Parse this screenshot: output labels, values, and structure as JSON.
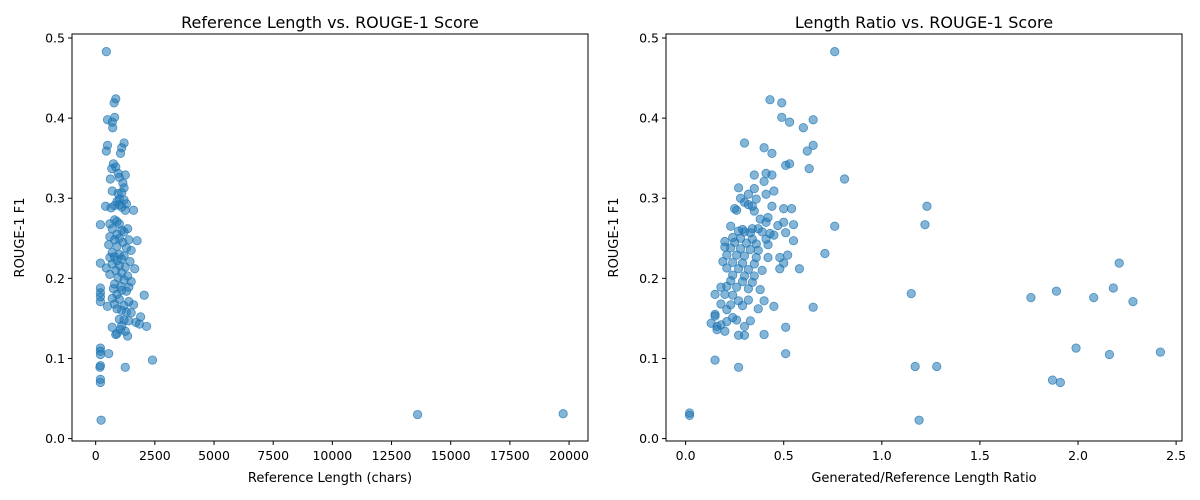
{
  "chart_data": [
    {
      "type": "scatter",
      "title": "Reference Length vs. ROUGE-1 Score",
      "xlabel": "Reference Length (chars)",
      "ylabel": "ROUGE-1 F1",
      "xlim": [
        -1000,
        20800
      ],
      "ylim": [
        -0.003,
        0.505
      ],
      "xticks": [
        0,
        2500,
        5000,
        7500,
        10000,
        12500,
        15000,
        17500,
        20000
      ],
      "yticks": [
        0.0,
        0.1,
        0.2,
        0.3,
        0.4,
        0.5
      ],
      "xtick_labels": [
        "0",
        "2500",
        "5000",
        "7500",
        "10000",
        "12500",
        "15000",
        "17500",
        "20000"
      ],
      "ytick_labels": [
        "0.0",
        "0.1",
        "0.2",
        "0.3",
        "0.4",
        "0.5"
      ],
      "grid": false,
      "marker_color": "#1f77b4",
      "marker_alpha": 0.55,
      "points": [
        [
          450,
          0.483
        ],
        [
          850,
          0.424
        ],
        [
          780,
          0.419
        ],
        [
          800,
          0.401
        ],
        [
          500,
          0.398
        ],
        [
          700,
          0.395
        ],
        [
          720,
          0.388
        ],
        [
          1200,
          0.369
        ],
        [
          500,
          0.366
        ],
        [
          1100,
          0.363
        ],
        [
          450,
          0.359
        ],
        [
          1050,
          0.356
        ],
        [
          750,
          0.343
        ],
        [
          680,
          0.337
        ],
        [
          850,
          0.339
        ],
        [
          950,
          0.331
        ],
        [
          1250,
          0.329
        ],
        [
          620,
          0.324
        ],
        [
          1000,
          0.326
        ],
        [
          1150,
          0.319
        ],
        [
          1200,
          0.313
        ],
        [
          700,
          0.309
        ],
        [
          1100,
          0.307
        ],
        [
          950,
          0.306
        ],
        [
          1000,
          0.299
        ],
        [
          900,
          0.296
        ],
        [
          1200,
          0.298
        ],
        [
          1300,
          0.293
        ],
        [
          800,
          0.291
        ],
        [
          420,
          0.29
        ],
        [
          1000,
          0.292
        ],
        [
          1100,
          0.289
        ],
        [
          650,
          0.288
        ],
        [
          1600,
          0.285
        ],
        [
          1250,
          0.285
        ],
        [
          200,
          0.267
        ],
        [
          600,
          0.268
        ],
        [
          800,
          0.273
        ],
        [
          900,
          0.271
        ],
        [
          1000,
          0.268
        ],
        [
          700,
          0.262
        ],
        [
          1100,
          0.26
        ],
        [
          1350,
          0.262
        ],
        [
          1200,
          0.258
        ],
        [
          900,
          0.255
        ],
        [
          600,
          0.252
        ],
        [
          800,
          0.248
        ],
        [
          1000,
          0.25
        ],
        [
          1400,
          0.248
        ],
        [
          1750,
          0.247
        ],
        [
          1150,
          0.245
        ],
        [
          550,
          0.242
        ],
        [
          900,
          0.24
        ],
        [
          1300,
          0.238
        ],
        [
          1500,
          0.235
        ],
        [
          700,
          0.232
        ],
        [
          1000,
          0.23
        ],
        [
          1200,
          0.228
        ],
        [
          800,
          0.227
        ],
        [
          600,
          0.226
        ],
        [
          1100,
          0.224
        ],
        [
          900,
          0.222
        ],
        [
          1450,
          0.221
        ],
        [
          200,
          0.219
        ],
        [
          700,
          0.218
        ],
        [
          1000,
          0.216
        ],
        [
          1250,
          0.214
        ],
        [
          450,
          0.213
        ],
        [
          1650,
          0.212
        ],
        [
          850,
          0.21
        ],
        [
          1100,
          0.207
        ],
        [
          600,
          0.205
        ],
        [
          1350,
          0.203
        ],
        [
          950,
          0.201
        ],
        [
          1200,
          0.198
        ],
        [
          1500,
          0.196
        ],
        [
          800,
          0.193
        ],
        [
          1050,
          0.19
        ],
        [
          1400,
          0.189
        ],
        [
          750,
          0.187
        ],
        [
          200,
          0.188
        ],
        [
          1100,
          0.185
        ],
        [
          1300,
          0.184
        ],
        [
          200,
          0.182
        ],
        [
          900,
          0.18
        ],
        [
          2050,
          0.179
        ],
        [
          200,
          0.177
        ],
        [
          700,
          0.175
        ],
        [
          1000,
          0.174
        ],
        [
          200,
          0.171
        ],
        [
          1400,
          0.171
        ],
        [
          800,
          0.168
        ],
        [
          1200,
          0.166
        ],
        [
          1600,
          0.167
        ],
        [
          500,
          0.165
        ],
        [
          900,
          0.162
        ],
        [
          1100,
          0.16
        ],
        [
          1300,
          0.158
        ],
        [
          1500,
          0.157
        ],
        [
          1900,
          0.152
        ],
        [
          1000,
          0.149
        ],
        [
          1200,
          0.148
        ],
        [
          1400,
          0.147
        ],
        [
          1700,
          0.145
        ],
        [
          1850,
          0.143
        ],
        [
          1100,
          0.141
        ],
        [
          700,
          0.139
        ],
        [
          2150,
          0.14
        ],
        [
          1050,
          0.136
        ],
        [
          1250,
          0.134
        ],
        [
          900,
          0.131
        ],
        [
          1350,
          0.128
        ],
        [
          850,
          0.13
        ],
        [
          200,
          0.113
        ],
        [
          200,
          0.109
        ],
        [
          550,
          0.106
        ],
        [
          200,
          0.105
        ],
        [
          2400,
          0.098
        ],
        [
          200,
          0.091
        ],
        [
          180,
          0.089
        ],
        [
          1250,
          0.089
        ],
        [
          200,
          0.074
        ],
        [
          200,
          0.07
        ],
        [
          230,
          0.023
        ],
        [
          13600,
          0.03
        ],
        [
          19750,
          0.031
        ]
      ]
    },
    {
      "type": "scatter",
      "title": "Length Ratio vs. ROUGE-1 Score",
      "xlabel": "Generated/Reference Length Ratio",
      "ylabel": "ROUGE-1 F1",
      "xlim": [
        -0.1,
        2.53
      ],
      "ylim": [
        -0.003,
        0.505
      ],
      "xticks": [
        0.0,
        0.5,
        1.0,
        1.5,
        2.0,
        2.5
      ],
      "yticks": [
        0.0,
        0.1,
        0.2,
        0.3,
        0.4,
        0.5
      ],
      "xtick_labels": [
        "0.0",
        "0.5",
        "1.0",
        "1.5",
        "2.0",
        "2.5"
      ],
      "ytick_labels": [
        "0.0",
        "0.1",
        "0.2",
        "0.3",
        "0.4",
        "0.5"
      ],
      "grid": false,
      "marker_color": "#1f77b4",
      "marker_alpha": 0.55,
      "points": [
        [
          0.76,
          0.483
        ],
        [
          0.43,
          0.423
        ],
        [
          0.49,
          0.419
        ],
        [
          0.49,
          0.401
        ],
        [
          0.53,
          0.395
        ],
        [
          0.65,
          0.398
        ],
        [
          0.6,
          0.388
        ],
        [
          0.3,
          0.369
        ],
        [
          0.4,
          0.363
        ],
        [
          0.65,
          0.366
        ],
        [
          0.44,
          0.356
        ],
        [
          0.62,
          0.359
        ],
        [
          0.53,
          0.343
        ],
        [
          0.51,
          0.341
        ],
        [
          0.63,
          0.337
        ],
        [
          0.35,
          0.329
        ],
        [
          0.41,
          0.331
        ],
        [
          0.44,
          0.329
        ],
        [
          0.81,
          0.324
        ],
        [
          0.4,
          0.321
        ],
        [
          0.27,
          0.313
        ],
        [
          0.35,
          0.312
        ],
        [
          0.45,
          0.309
        ],
        [
          0.32,
          0.305
        ],
        [
          0.41,
          0.305
        ],
        [
          0.28,
          0.3
        ],
        [
          0.36,
          0.299
        ],
        [
          0.3,
          0.295
        ],
        [
          0.32,
          0.292
        ],
        [
          0.34,
          0.29
        ],
        [
          0.44,
          0.29
        ],
        [
          1.23,
          0.29
        ],
        [
          0.25,
          0.287
        ],
        [
          0.26,
          0.285
        ],
        [
          0.35,
          0.284
        ],
        [
          0.5,
          0.287
        ],
        [
          0.54,
          0.287
        ],
        [
          0.42,
          0.276
        ],
        [
          0.38,
          0.274
        ],
        [
          0.41,
          0.27
        ],
        [
          0.5,
          0.27
        ],
        [
          0.23,
          0.265
        ],
        [
          0.29,
          0.261
        ],
        [
          0.34,
          0.262
        ],
        [
          0.37,
          0.262
        ],
        [
          0.47,
          0.266
        ],
        [
          0.55,
          0.267
        ],
        [
          0.76,
          0.265
        ],
        [
          1.22,
          0.267
        ],
        [
          0.27,
          0.259
        ],
        [
          0.3,
          0.258
        ],
        [
          0.33,
          0.257
        ],
        [
          0.39,
          0.258
        ],
        [
          0.43,
          0.256
        ],
        [
          0.51,
          0.257
        ],
        [
          0.24,
          0.251
        ],
        [
          0.28,
          0.25
        ],
        [
          0.34,
          0.249
        ],
        [
          0.41,
          0.249
        ],
        [
          0.45,
          0.254
        ],
        [
          0.2,
          0.246
        ],
        [
          0.25,
          0.245
        ],
        [
          0.31,
          0.244
        ],
        [
          0.36,
          0.243
        ],
        [
          0.42,
          0.242
        ],
        [
          0.55,
          0.247
        ],
        [
          0.2,
          0.239
        ],
        [
          0.23,
          0.238
        ],
        [
          0.28,
          0.237
        ],
        [
          0.33,
          0.236
        ],
        [
          0.37,
          0.235
        ],
        [
          0.21,
          0.229
        ],
        [
          0.26,
          0.229
        ],
        [
          0.3,
          0.228
        ],
        [
          0.36,
          0.226
        ],
        [
          0.42,
          0.226
        ],
        [
          0.48,
          0.226
        ],
        [
          0.52,
          0.229
        ],
        [
          0.71,
          0.231
        ],
        [
          0.19,
          0.221
        ],
        [
          0.24,
          0.22
        ],
        [
          0.29,
          0.219
        ],
        [
          0.35,
          0.218
        ],
        [
          0.5,
          0.219
        ],
        [
          2.21,
          0.219
        ],
        [
          0.21,
          0.213
        ],
        [
          0.27,
          0.212
        ],
        [
          0.32,
          0.211
        ],
        [
          0.39,
          0.21
        ],
        [
          0.48,
          0.212
        ],
        [
          0.58,
          0.212
        ],
        [
          0.24,
          0.204
        ],
        [
          0.3,
          0.203
        ],
        [
          0.35,
          0.203
        ],
        [
          0.23,
          0.197
        ],
        [
          0.29,
          0.196
        ],
        [
          0.34,
          0.195
        ],
        [
          0.21,
          0.19
        ],
        [
          0.26,
          0.189
        ],
        [
          0.32,
          0.187
        ],
        [
          0.18,
          0.189
        ],
        [
          0.38,
          0.186
        ],
        [
          2.18,
          0.188
        ],
        [
          1.89,
          0.184
        ],
        [
          0.15,
          0.18
        ],
        [
          0.2,
          0.18
        ],
        [
          0.24,
          0.179
        ],
        [
          1.15,
          0.181
        ],
        [
          0.27,
          0.172
        ],
        [
          0.32,
          0.173
        ],
        [
          0.4,
          0.172
        ],
        [
          1.76,
          0.176
        ],
        [
          2.08,
          0.176
        ],
        [
          0.18,
          0.168
        ],
        [
          0.23,
          0.167
        ],
        [
          0.29,
          0.166
        ],
        [
          0.45,
          0.165
        ],
        [
          0.65,
          0.164
        ],
        [
          2.28,
          0.171
        ],
        [
          0.21,
          0.161
        ],
        [
          0.37,
          0.162
        ],
        [
          0.15,
          0.155
        ],
        [
          0.24,
          0.151
        ],
        [
          0.15,
          0.153
        ],
        [
          0.26,
          0.148
        ],
        [
          0.33,
          0.147
        ],
        [
          0.13,
          0.144
        ],
        [
          0.18,
          0.142
        ],
        [
          0.21,
          0.146
        ],
        [
          0.16,
          0.14
        ],
        [
          0.3,
          0.14
        ],
        [
          0.51,
          0.139
        ],
        [
          0.16,
          0.136
        ],
        [
          0.2,
          0.134
        ],
        [
          0.27,
          0.129
        ],
        [
          0.3,
          0.129
        ],
        [
          0.4,
          0.13
        ],
        [
          1.99,
          0.113
        ],
        [
          2.42,
          0.108
        ],
        [
          2.16,
          0.105
        ],
        [
          0.51,
          0.106
        ],
        [
          0.15,
          0.098
        ],
        [
          0.27,
          0.089
        ],
        [
          1.17,
          0.09
        ],
        [
          1.28,
          0.09
        ],
        [
          1.87,
          0.073
        ],
        [
          1.91,
          0.07
        ],
        [
          0.02,
          0.032
        ],
        [
          0.02,
          0.029
        ],
        [
          1.19,
          0.023
        ]
      ]
    }
  ]
}
